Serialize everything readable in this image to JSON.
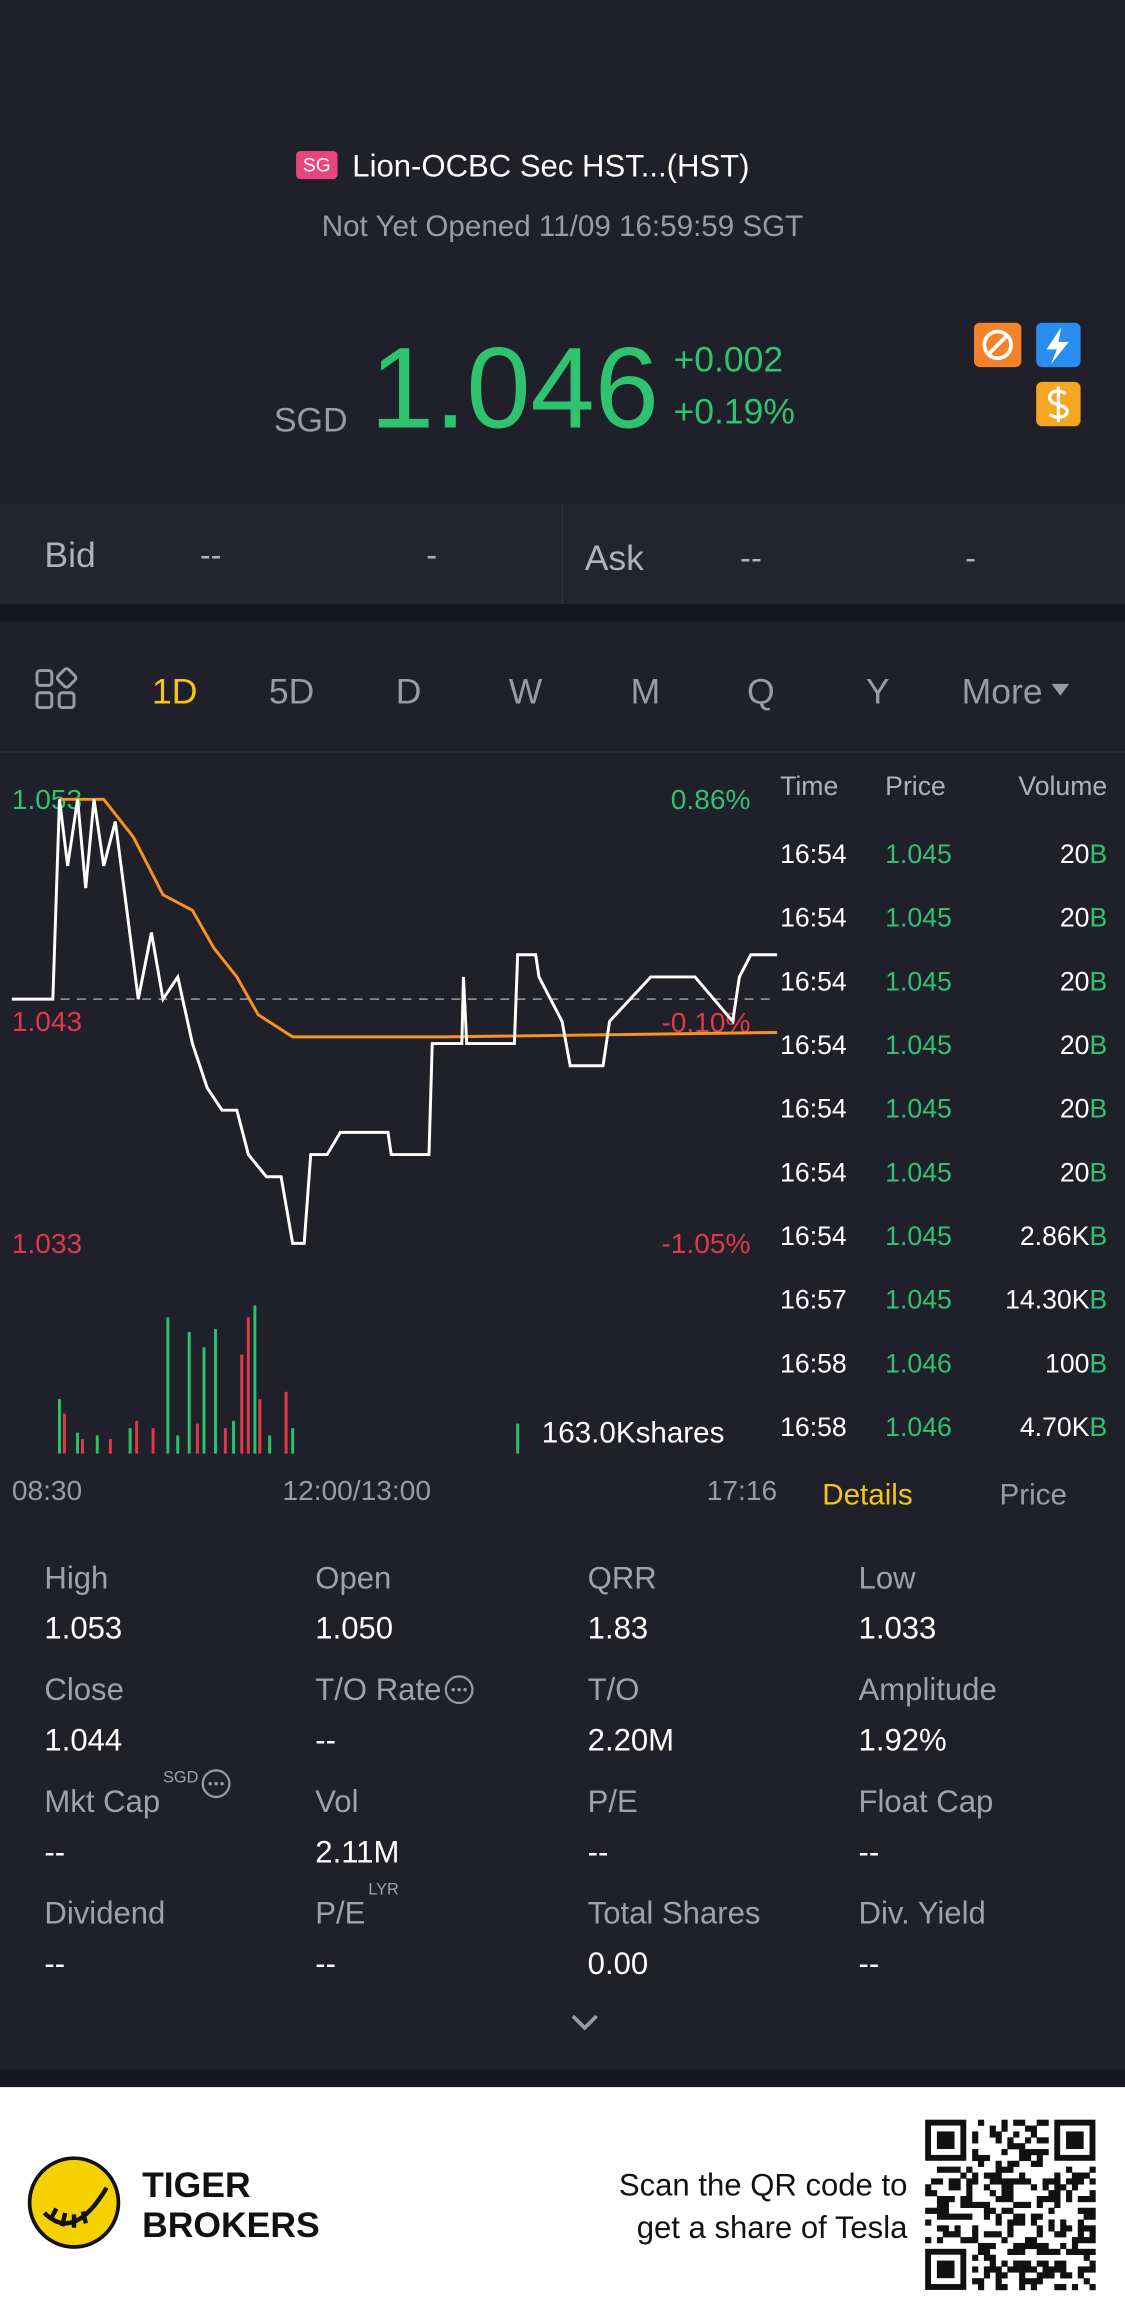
{
  "header": {
    "badge": "SG",
    "name": "Lion-OCBC Sec HST...(HST)",
    "status": "Not Yet Opened 11/09 16:59:59 SGT"
  },
  "quote": {
    "currency": "SGD",
    "price": "1.046",
    "change": "+0.002",
    "change_pct": "+0.19%"
  },
  "bid_ask": {
    "bid_label": "Bid",
    "bid_price": "--",
    "bid_size": "-",
    "ask_label": "Ask",
    "ask_price": "--",
    "ask_size": "-"
  },
  "tabs": [
    "1D",
    "5D",
    "D",
    "W",
    "M",
    "Q",
    "Y",
    "More"
  ],
  "chart_data": [
    {
      "type": "line",
      "ylim": [
        1.033,
        1.053
      ],
      "yticks": [
        1.053,
        1.043,
        1.033
      ],
      "y2lim": [
        -1.05,
        0.86
      ],
      "y2ticks": [
        {
          "value": 0.86,
          "label": "0.86%"
        },
        {
          "value": -0.1,
          "label": "-0.10%"
        },
        {
          "value": -1.05,
          "label": "-1.05%"
        }
      ],
      "xlim": [
        0,
        466
      ],
      "xticks": [
        {
          "value": 0,
          "label": "08:30"
        },
        {
          "value": 210,
          "label": "12:00/13:00"
        },
        {
          "value": 466,
          "label": "17:16"
        }
      ],
      "reference_line": 1.044,
      "series": [
        {
          "color": "#ffffff",
          "x": [
            0,
            25,
            29,
            34,
            40,
            45,
            50,
            56,
            63,
            70,
            77,
            85,
            92,
            101,
            110,
            119,
            128,
            137,
            144,
            155,
            164,
            171,
            178,
            182,
            192,
            200,
            229,
            231,
            254,
            256,
            274,
            275,
            277,
            306,
            308,
            319,
            321,
            335,
            340,
            360,
            364,
            389,
            416,
            439,
            443,
            450,
            466
          ],
          "values": [
            1.044,
            1.044,
            1.053,
            1.05,
            1.053,
            1.049,
            1.053,
            1.05,
            1.052,
            1.048,
            1.044,
            1.047,
            1.044,
            1.045,
            1.042,
            1.04,
            1.039,
            1.039,
            1.037,
            1.036,
            1.036,
            1.033,
            1.033,
            1.037,
            1.037,
            1.038,
            1.038,
            1.037,
            1.037,
            1.042,
            1.042,
            1.045,
            1.042,
            1.042,
            1.046,
            1.046,
            1.045,
            1.043,
            1.041,
            1.041,
            1.043,
            1.045,
            1.045,
            1.043,
            1.045,
            1.046,
            1.046
          ]
        },
        {
          "color": "#f7931e",
          "x": [
            29,
            56,
            74,
            92,
            110,
            123,
            137,
            150,
            171,
            263,
            466
          ],
          "values": [
            1.053,
            1.053,
            1.0513,
            1.0487,
            1.048,
            1.0463,
            1.045,
            1.0433,
            1.0423,
            1.0423,
            1.0425
          ]
        }
      ]
    },
    {
      "type": "bar",
      "ylim": [
        0,
        163.0
      ],
      "yticks": [
        {
          "value": 163.0,
          "label": "163.0Kshares"
        }
      ],
      "x": [
        29,
        32,
        40,
        43,
        52,
        60,
        72,
        76,
        86,
        95,
        101,
        108,
        113,
        117,
        124,
        130,
        135,
        140,
        144,
        148,
        151,
        157,
        167,
        171,
        308
      ],
      "values": [
        60,
        44,
        23,
        16,
        20,
        16,
        28,
        36,
        28,
        150,
        20,
        134,
        33,
        117,
        137,
        28,
        36,
        109,
        150,
        163,
        60,
        20,
        68,
        28,
        33
      ],
      "colors": [
        "#27c26c",
        "#e0394a",
        "#27c26c",
        "#e0394a",
        "#27c26c",
        "#e0394a",
        "#27c26c",
        "#e0394a",
        "#e0394a",
        "#27c26c",
        "#27c26c",
        "#27c26c",
        "#e0394a",
        "#27c26c",
        "#27c26c",
        "#e0394a",
        "#27c26c",
        "#e0394a",
        "#e0394a",
        "#27c26c",
        "#e0394a",
        "#27c26c",
        "#e0394a",
        "#27c26c",
        "#27c26c"
      ]
    }
  ],
  "trades": {
    "headers": [
      "Time",
      "Price",
      "Volume"
    ],
    "rows": [
      [
        "16:54",
        "1.045",
        "20",
        "B"
      ],
      [
        "16:54",
        "1.045",
        "20",
        "B"
      ],
      [
        "16:54",
        "1.045",
        "20",
        "B"
      ],
      [
        "16:54",
        "1.045",
        "20",
        "B"
      ],
      [
        "16:54",
        "1.045",
        "20",
        "B"
      ],
      [
        "16:54",
        "1.045",
        "20",
        "B"
      ],
      [
        "16:54",
        "1.045",
        "2.86K",
        "B"
      ],
      [
        "16:57",
        "1.045",
        "14.30K",
        "B"
      ],
      [
        "16:58",
        "1.046",
        "100",
        "B"
      ],
      [
        "16:58",
        "1.046",
        "4.70K",
        "B"
      ]
    ]
  },
  "detail_tabs": [
    "Details",
    "Price"
  ],
  "stats": [
    {
      "label": "High",
      "value": "1.053"
    },
    {
      "label": "Open",
      "value": "1.050"
    },
    {
      "label": "QRR",
      "value": "1.83"
    },
    {
      "label": "Low",
      "value": "1.033"
    },
    {
      "label": "Close",
      "value": "1.044"
    },
    {
      "label": "T/O Rate",
      "value": "--"
    },
    {
      "label": "T/O",
      "value": "2.20M"
    },
    {
      "label": "Amplitude",
      "value": "1.92%"
    },
    {
      "label": "Mkt Cap",
      "sup": "SGD",
      "value": "--"
    },
    {
      "label": "Vol",
      "value": "2.11M"
    },
    {
      "label": "P/E",
      "value": "--"
    },
    {
      "label": "Float Cap",
      "value": "--"
    },
    {
      "label": "Dividend",
      "value": "--"
    },
    {
      "label": "P/E",
      "sup": "LYR",
      "value": "--"
    },
    {
      "label": "Total Shares",
      "value": "0.00"
    },
    {
      "label": "Div. Yield",
      "value": "--"
    }
  ],
  "footer": {
    "brand_line1": "TIGER",
    "brand_line2": "BROKERS",
    "promo_line1": "Scan the QR code to",
    "promo_line2": "get a share of Tesla"
  }
}
